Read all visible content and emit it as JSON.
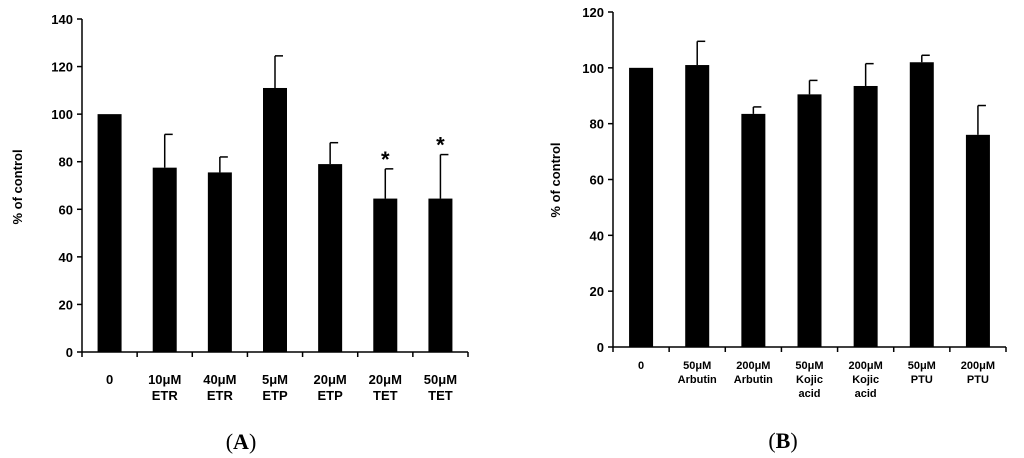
{
  "chart_data": [
    {
      "type": "bar",
      "panel_label": "(A)",
      "panel_letter": "A",
      "ylabel": "% of control",
      "ylim": [
        0,
        140
      ],
      "yticks": [
        0,
        20,
        40,
        60,
        80,
        100,
        120,
        140
      ],
      "categories": [
        [
          "0"
        ],
        [
          "10μM",
          "ETR"
        ],
        [
          "40μM",
          "ETR"
        ],
        [
          "5μM",
          "ETP"
        ],
        [
          "20μM",
          "ETP"
        ],
        [
          "20μM",
          "TET"
        ],
        [
          "50μM",
          "TET"
        ]
      ],
      "values": [
        100,
        77.5,
        75.5,
        111,
        79,
        64.5,
        64.5
      ],
      "errors": [
        0,
        14,
        6.5,
        13.5,
        9,
        12.5,
        18.5
      ],
      "significance": [
        "",
        "",
        "",
        "",
        "",
        "*",
        "*"
      ],
      "bar_color": "#000000"
    },
    {
      "type": "bar",
      "panel_label": "(B)",
      "panel_letter": "B",
      "ylabel": "% of control",
      "ylim": [
        0,
        120
      ],
      "yticks": [
        0,
        20,
        40,
        60,
        80,
        100,
        120
      ],
      "categories": [
        [
          "0"
        ],
        [
          "50μM",
          "Arbutin"
        ],
        [
          "200μM",
          "Arbutin"
        ],
        [
          "50μM",
          "Kojic",
          "acid"
        ],
        [
          "200μM",
          "Kojic",
          "acid"
        ],
        [
          "50μM",
          "PTU"
        ],
        [
          "200μM",
          "PTU"
        ]
      ],
      "values": [
        100,
        101,
        83.5,
        90.5,
        93.5,
        102,
        76
      ],
      "errors": [
        0,
        8.5,
        2.5,
        5,
        8,
        2.5,
        10.5
      ],
      "significance": [
        "",
        "",
        "",
        "",
        "",
        "",
        ""
      ],
      "bar_color": "#000000"
    }
  ]
}
